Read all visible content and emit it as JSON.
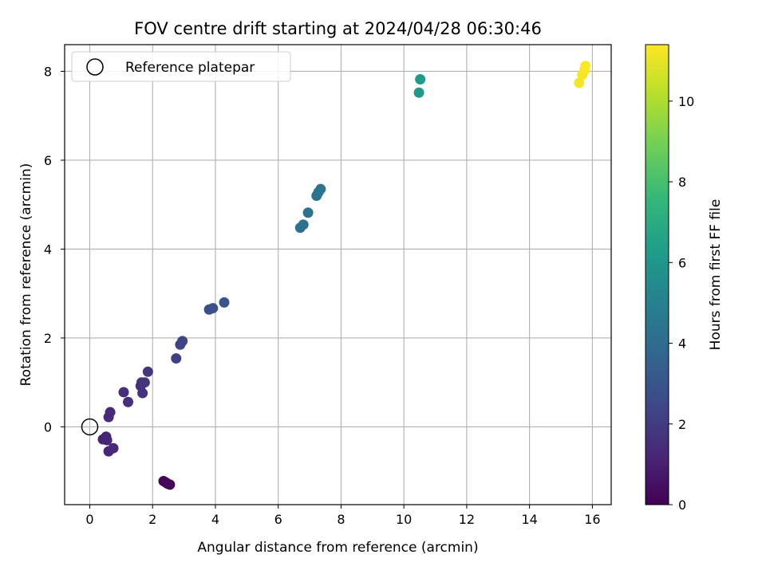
{
  "chart_data": {
    "type": "scatter",
    "title": "FOV centre drift starting at 2024/04/28 06:30:46",
    "xlabel": "Angular distance from reference (arcmin)",
    "ylabel": "Rotation from reference (arcmin)",
    "xlim": [
      -0.8,
      16.6
    ],
    "ylim": [
      -1.75,
      8.6
    ],
    "xticks": [
      0,
      2,
      4,
      6,
      8,
      10,
      12,
      14,
      16
    ],
    "yticks": [
      0,
      2,
      4,
      6,
      8
    ],
    "grid": true,
    "legend": {
      "position": "top-left",
      "entries": [
        "Reference platepar"
      ]
    },
    "reference_point": {
      "x": 0,
      "y": 0,
      "marker": "hollow-circle"
    },
    "colorbar": {
      "label": "Hours from first FF file",
      "range": [
        0,
        11.4
      ],
      "ticks": [
        0,
        2,
        4,
        6,
        8,
        10
      ],
      "colormap": "viridis"
    },
    "series": [
      {
        "points": [
          {
            "x": 2.35,
            "y": -1.22,
            "c": 0.05
          },
          {
            "x": 2.42,
            "y": -1.25,
            "c": 0.1
          },
          {
            "x": 2.48,
            "y": -1.28,
            "c": 0.15
          },
          {
            "x": 2.55,
            "y": -1.3,
            "c": 0.2
          },
          {
            "x": 0.42,
            "y": -0.28,
            "c": 1.1
          },
          {
            "x": 0.52,
            "y": -0.22,
            "c": 1.15
          },
          {
            "x": 0.55,
            "y": -0.3,
            "c": 1.2
          },
          {
            "x": 0.6,
            "y": -0.55,
            "c": 1.25
          },
          {
            "x": 0.75,
            "y": -0.48,
            "c": 1.3
          },
          {
            "x": 0.6,
            "y": 0.22,
            "c": 1.35
          },
          {
            "x": 0.65,
            "y": 0.33,
            "c": 1.4
          },
          {
            "x": 1.08,
            "y": 0.78,
            "c": 1.5
          },
          {
            "x": 1.22,
            "y": 0.56,
            "c": 1.55
          },
          {
            "x": 1.62,
            "y": 0.92,
            "c": 1.6
          },
          {
            "x": 1.65,
            "y": 1.0,
            "c": 1.65
          },
          {
            "x": 1.68,
            "y": 0.76,
            "c": 1.7
          },
          {
            "x": 1.75,
            "y": 1.0,
            "c": 1.75
          },
          {
            "x": 1.85,
            "y": 1.24,
            "c": 1.8
          },
          {
            "x": 2.75,
            "y": 1.54,
            "c": 2.2
          },
          {
            "x": 2.88,
            "y": 1.85,
            "c": 2.3
          },
          {
            "x": 2.95,
            "y": 1.93,
            "c": 2.35
          },
          {
            "x": 3.8,
            "y": 2.64,
            "c": 2.8
          },
          {
            "x": 3.92,
            "y": 2.67,
            "c": 2.85
          },
          {
            "x": 4.28,
            "y": 2.8,
            "c": 3.0
          },
          {
            "x": 6.7,
            "y": 4.48,
            "c": 4.2
          },
          {
            "x": 6.8,
            "y": 4.55,
            "c": 4.25
          },
          {
            "x": 6.95,
            "y": 4.82,
            "c": 4.3
          },
          {
            "x": 7.22,
            "y": 5.2,
            "c": 4.35
          },
          {
            "x": 7.28,
            "y": 5.28,
            "c": 4.4
          },
          {
            "x": 7.35,
            "y": 5.35,
            "c": 4.45
          },
          {
            "x": 10.48,
            "y": 7.52,
            "c": 6.1
          },
          {
            "x": 10.52,
            "y": 7.82,
            "c": 6.2
          },
          {
            "x": 15.58,
            "y": 7.74,
            "c": 11.2
          },
          {
            "x": 15.68,
            "y": 7.92,
            "c": 11.25
          },
          {
            "x": 15.75,
            "y": 8.02,
            "c": 11.3
          },
          {
            "x": 15.78,
            "y": 8.12,
            "c": 11.35
          }
        ]
      }
    ]
  }
}
